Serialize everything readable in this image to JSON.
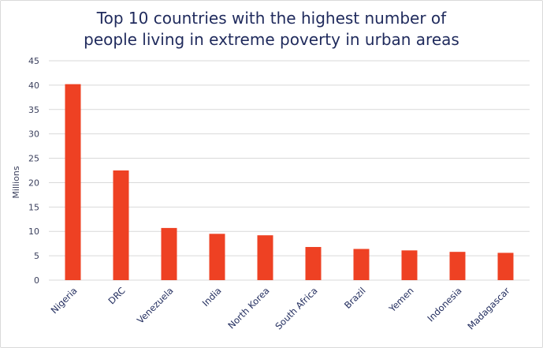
{
  "chart_data": {
    "type": "bar",
    "title_lines": [
      "Top 10 countries with the highest number of",
      "people living in extreme poverty in urban areas"
    ],
    "ylabel": "Millions",
    "xlabel": "",
    "ylim": [
      0,
      45
    ],
    "yticks": [
      0,
      5,
      10,
      15,
      20,
      25,
      30,
      35,
      40,
      45
    ],
    "grid": true,
    "legend": "none",
    "categories": [
      "Nigeria",
      "DRC",
      "Venezuela",
      "India",
      "North Korea",
      "South Africa",
      "Brazil",
      "Yemen",
      "Indonesia",
      "Madagascar"
    ],
    "values": [
      40.2,
      22.5,
      10.7,
      9.5,
      9.2,
      6.8,
      6.4,
      6.1,
      5.8,
      5.6
    ],
    "bar_color": "#ee4123",
    "grid_color": "#d9d9d9"
  }
}
